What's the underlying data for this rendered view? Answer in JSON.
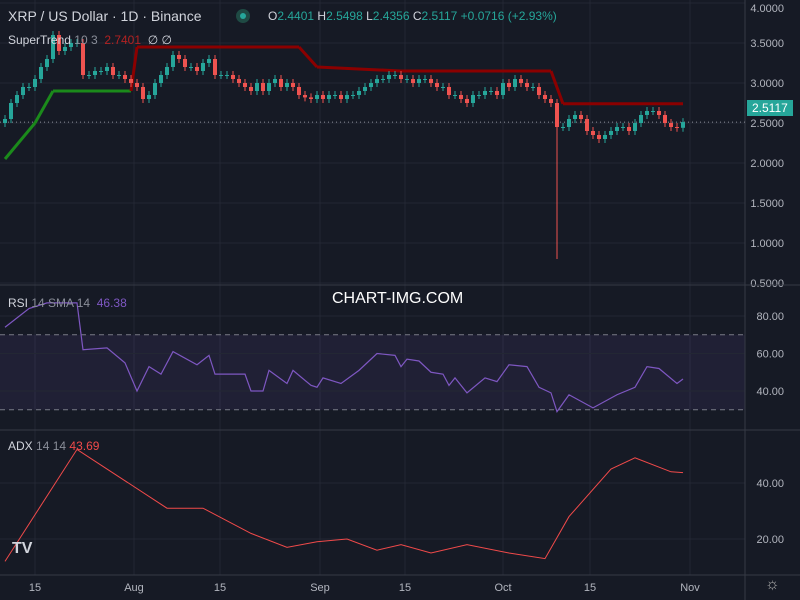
{
  "header": {
    "symbol": "XRP / US Dollar · 1D · Binance",
    "o_label": "O",
    "o": "2.4401",
    "h_label": "H",
    "h": "2.5498",
    "l_label": "L",
    "l": "2.4356",
    "c_label": "C",
    "c": "2.5117",
    "change": "+0.0716 (+2.93%)"
  },
  "supertrend": {
    "label": "SuperTrend",
    "params": "10 3",
    "value": "2.7401",
    "v1": "∅",
    "v2": "∅"
  },
  "rsi": {
    "label": "RSI",
    "params": "14 SMA 14",
    "value": "46.38"
  },
  "adx": {
    "label": "ADX",
    "params": "14 14",
    "value": "43.69"
  },
  "watermark": "CHART-IMG.COM",
  "last_price": "2.5117",
  "colors": {
    "up": "#26a69a",
    "down": "#ef5350",
    "st_up": "#1b8a1b",
    "st_down": "#8b0000",
    "rsi": "#7e57c2",
    "adx": "#f04a4a"
  },
  "chart_data": [
    {
      "type": "candlestick",
      "start_date": "Jul 10",
      "ylim": [
        0.5,
        4.0
      ],
      "yticks": [
        "4.0000",
        "3.5000",
        "3.0000",
        "2.5000",
        "2.0000",
        "1.5000",
        "1.0000",
        "0.5000"
      ],
      "xticks": [
        "15",
        "Aug",
        "15",
        "Sep",
        "15",
        "Oct",
        "15",
        "Nov"
      ],
      "closes": [
        2.55,
        2.75,
        2.85,
        2.95,
        2.95,
        3.05,
        3.2,
        3.3,
        3.6,
        3.4,
        3.45,
        3.5,
        3.5,
        3.1,
        3.1,
        3.15,
        3.15,
        3.2,
        3.1,
        3.1,
        3.05,
        3.0,
        2.95,
        2.8,
        2.85,
        3.0,
        3.1,
        3.2,
        3.35,
        3.3,
        3.2,
        3.2,
        3.15,
        3.25,
        3.3,
        3.1,
        3.1,
        3.1,
        3.05,
        3.0,
        2.95,
        2.9,
        3.0,
        2.9,
        3.0,
        3.05,
        2.95,
        3.0,
        2.95,
        2.85,
        2.82,
        2.8,
        2.85,
        2.8,
        2.85,
        2.85,
        2.8,
        2.85,
        2.85,
        2.9,
        2.95,
        3.0,
        3.05,
        3.05,
        3.1,
        3.1,
        3.05,
        3.05,
        3.0,
        3.05,
        3.05,
        3.0,
        2.95,
        2.95,
        2.85,
        2.85,
        2.8,
        2.75,
        2.85,
        2.85,
        2.9,
        2.9,
        2.85,
        3.0,
        2.95,
        3.05,
        3.0,
        2.95,
        2.95,
        2.85,
        2.8,
        2.75,
        2.45,
        2.45,
        2.55,
        2.6,
        2.55,
        2.4,
        2.35,
        2.3,
        2.35,
        2.4,
        2.45,
        2.45,
        2.4,
        2.5,
        2.6,
        2.65,
        2.65,
        2.6,
        2.5,
        2.45,
        2.44,
        2.5117
      ],
      "spike_low": {
        "date": "Oct 10",
        "value": 0.8
      },
      "supertrend": [
        [
          "Jul 10",
          2.05,
          "up"
        ],
        [
          "Jul 15",
          2.5,
          "up"
        ],
        [
          "Jul 18",
          2.9,
          "up"
        ],
        [
          "Jul 31",
          2.9,
          "up"
        ],
        [
          "Aug 1",
          3.45,
          "down"
        ],
        [
          "Aug 28",
          3.45,
          "down"
        ],
        [
          "Aug 31",
          3.2,
          "down"
        ],
        [
          "Sep 14",
          3.15,
          "down"
        ],
        [
          "Oct 9",
          3.15,
          "down"
        ],
        [
          "Oct 11",
          2.74,
          "down"
        ],
        [
          "Oct 31",
          2.74,
          "down"
        ]
      ]
    },
    {
      "type": "line",
      "name": "RSI",
      "ylim": [
        20,
        95
      ],
      "yticks": [
        "80.00",
        "60.00",
        "40.00"
      ],
      "bands": [
        70,
        30
      ],
      "points": [
        [
          "Jul 10",
          74
        ],
        [
          "Jul 14",
          84
        ],
        [
          "Jul 17",
          87
        ],
        [
          "Jul 22",
          87
        ],
        [
          "Jul 23",
          62
        ],
        [
          "Jul 27",
          63
        ],
        [
          "Jul 30",
          55
        ],
        [
          "Aug 1",
          40
        ],
        [
          "Aug 3",
          53
        ],
        [
          "Aug 5",
          49
        ],
        [
          "Aug 7",
          61
        ],
        [
          "Aug 11",
          54
        ],
        [
          "Aug 13",
          59
        ],
        [
          "Aug 14",
          49
        ],
        [
          "Aug 19",
          49
        ],
        [
          "Aug 20",
          40
        ],
        [
          "Aug 22",
          40
        ],
        [
          "Aug 23",
          51
        ],
        [
          "Aug 26",
          44
        ],
        [
          "Aug 27",
          51
        ],
        [
          "Aug 30",
          43
        ],
        [
          "Aug 31",
          42
        ],
        [
          "Sep 1",
          47
        ],
        [
          "Sep 4",
          44
        ],
        [
          "Sep 7",
          51
        ],
        [
          "Sep 10",
          60
        ],
        [
          "Sep 13",
          59
        ],
        [
          "Sep 14",
          53
        ],
        [
          "Sep 15",
          57
        ],
        [
          "Sep 17",
          56
        ],
        [
          "Sep 19",
          50
        ],
        [
          "Sep 21",
          49
        ],
        [
          "Sep 22",
          43
        ],
        [
          "Sep 23",
          47
        ],
        [
          "Sep 25",
          39
        ],
        [
          "Sep 28",
          47
        ],
        [
          "Sep 30",
          45
        ],
        [
          "Oct 2",
          54
        ],
        [
          "Oct 5",
          53
        ],
        [
          "Oct 7",
          42
        ],
        [
          "Oct 9",
          39
        ],
        [
          "Oct 10",
          29
        ],
        [
          "Oct 12",
          38
        ],
        [
          "Oct 16",
          31
        ],
        [
          "Oct 20",
          38
        ],
        [
          "Oct 23",
          42
        ],
        [
          "Oct 25",
          53
        ],
        [
          "Oct 27",
          52
        ],
        [
          "Oct 30",
          44
        ],
        [
          "Oct 31",
          46.38
        ]
      ]
    },
    {
      "type": "line",
      "name": "ADX",
      "yticks": [
        "40.00",
        "20.00"
      ],
      "points": [
        [
          "Jul 10",
          12
        ],
        [
          "Jul 22",
          52
        ],
        [
          "Aug 6",
          31
        ],
        [
          "Aug 12",
          31
        ],
        [
          "Aug 20",
          22
        ],
        [
          "Aug 26",
          17
        ],
        [
          "Aug 31",
          19
        ],
        [
          "Sep 5",
          20
        ],
        [
          "Sep 10",
          16
        ],
        [
          "Sep 14",
          18
        ],
        [
          "Sep 19",
          15
        ],
        [
          "Sep 25",
          18
        ],
        [
          "Oct 2",
          15
        ],
        [
          "Oct 8",
          13
        ],
        [
          "Oct 12",
          28
        ],
        [
          "Oct 19",
          45
        ],
        [
          "Oct 23",
          49
        ],
        [
          "Oct 29",
          44
        ],
        [
          "Oct 31",
          43.69
        ]
      ]
    }
  ]
}
